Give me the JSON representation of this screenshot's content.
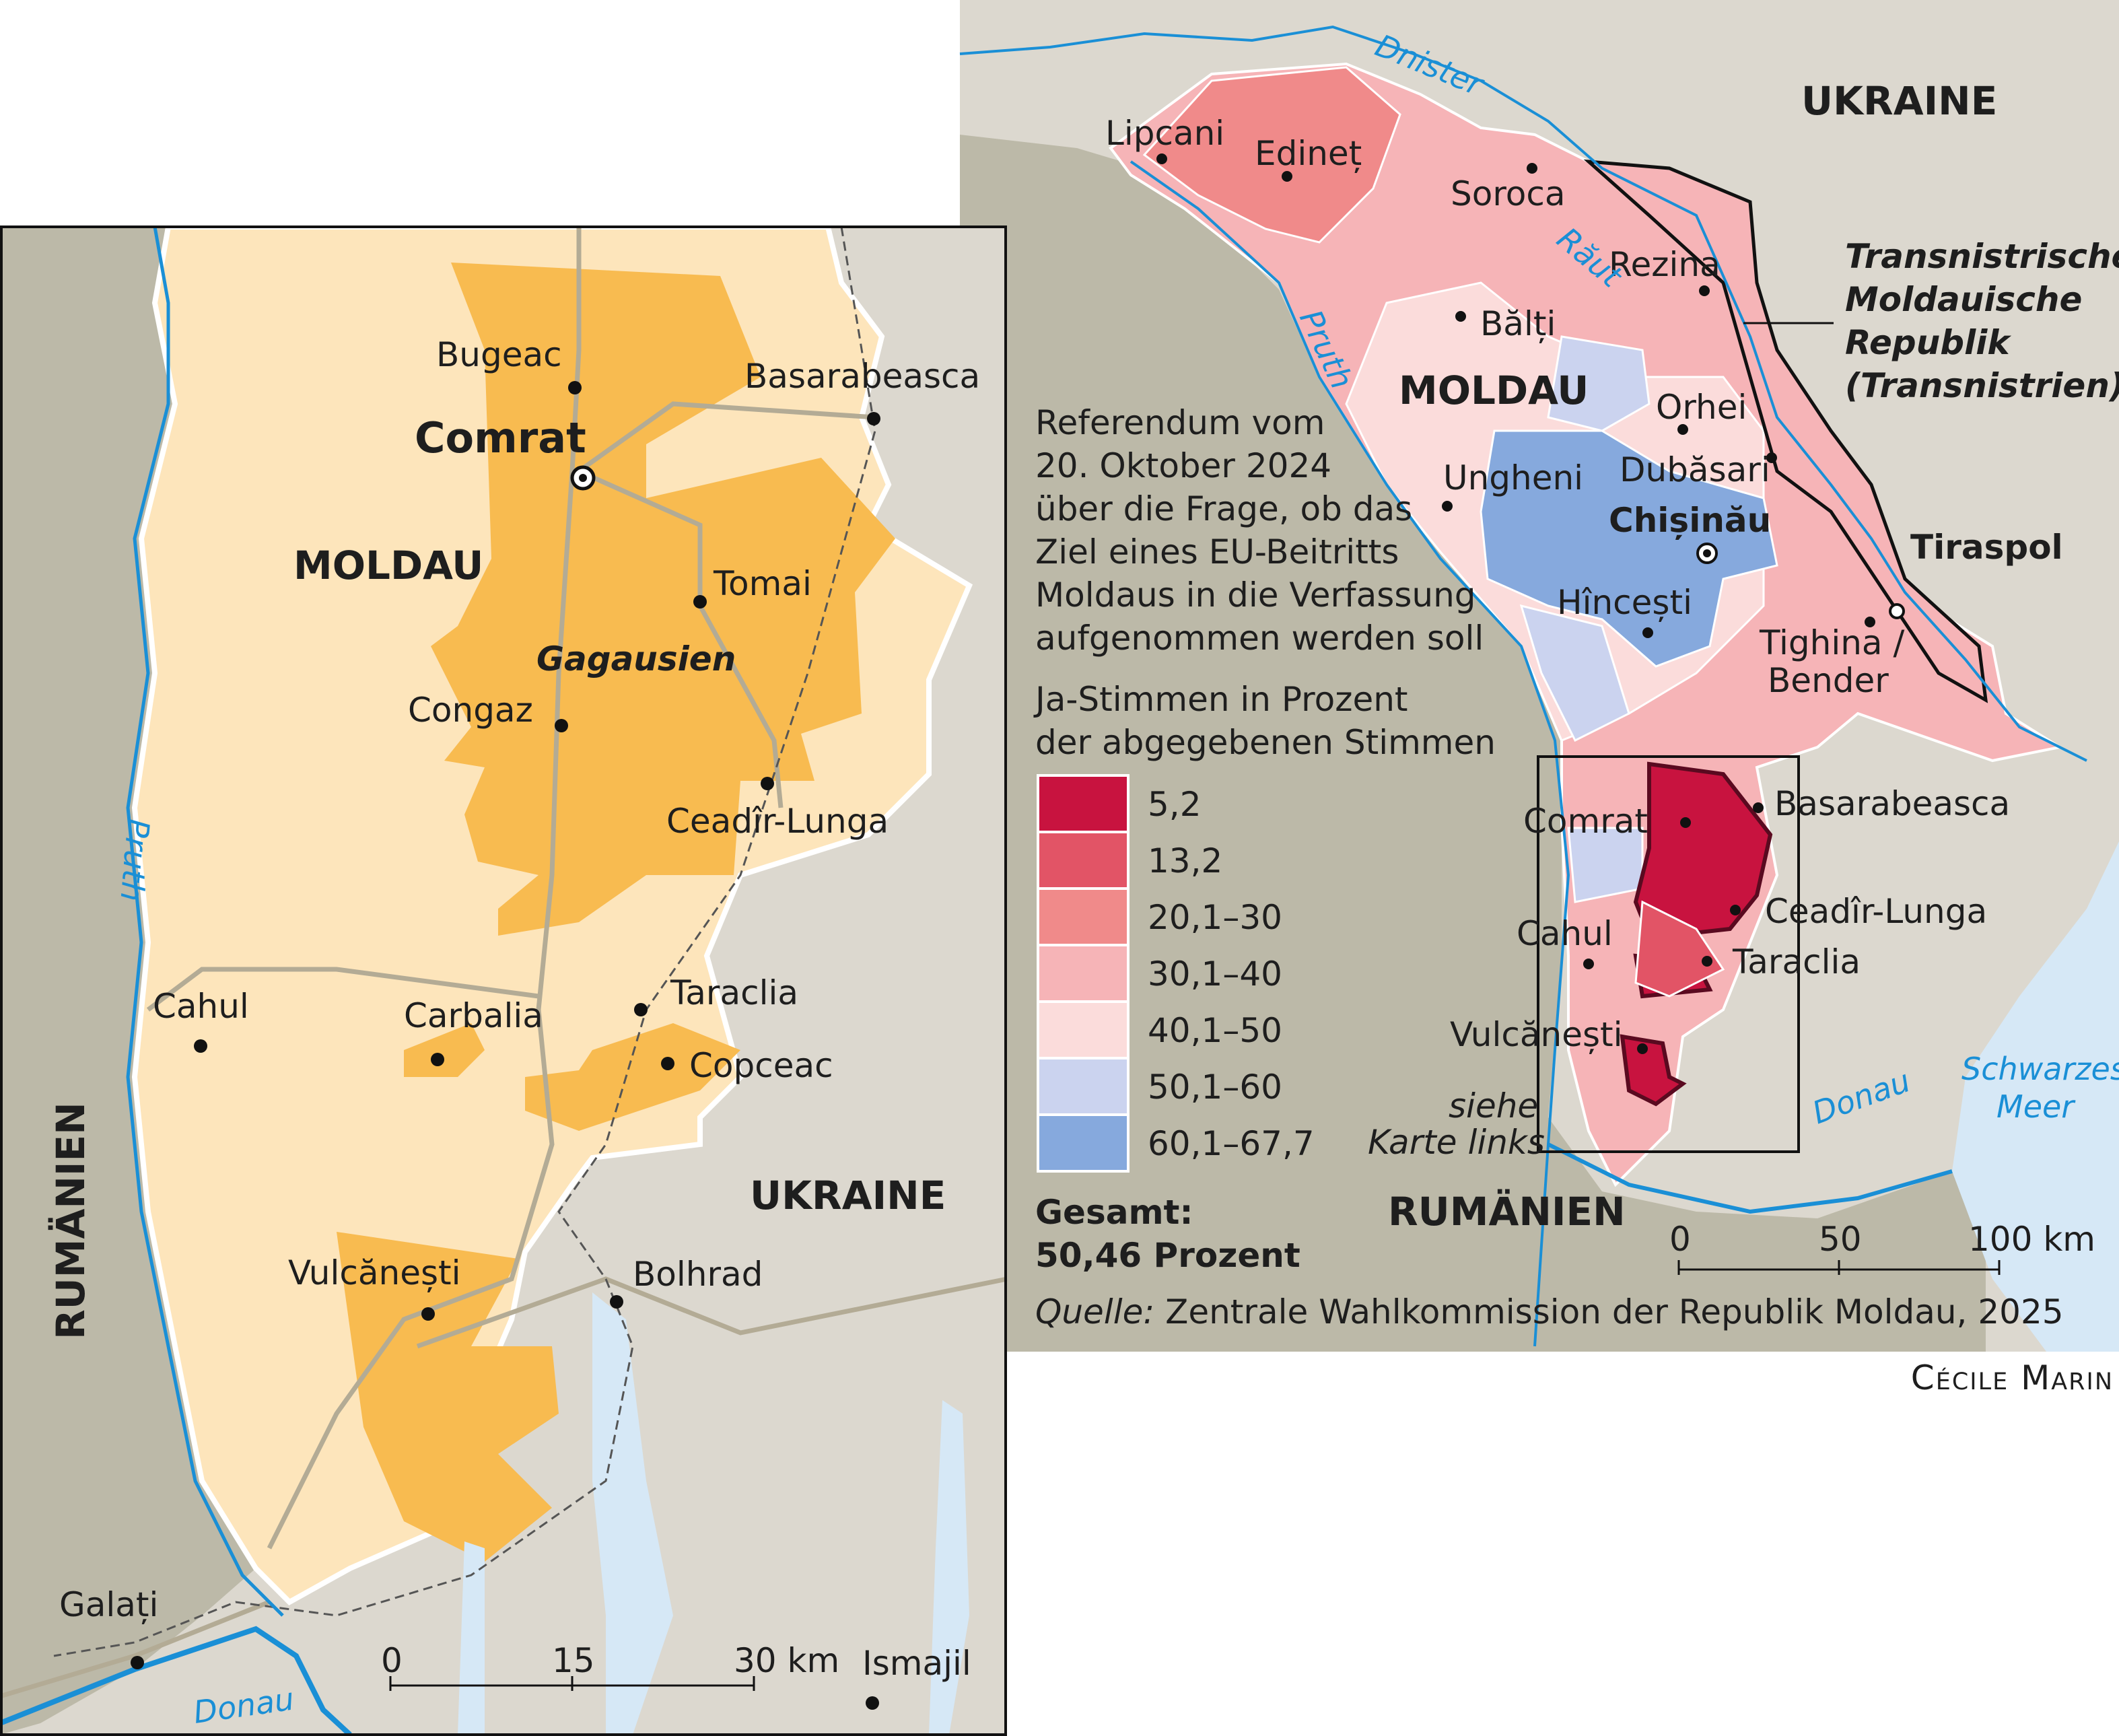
{
  "colors": {
    "romania": "#bcb9a8",
    "ukraine": "#dcd8cf",
    "moldova_left": "#fde5bb",
    "gagauzia": "#f8bb50",
    "water": "#d6e8f6",
    "river": "#1a8fd6"
  },
  "left_map": {
    "country_labels": {
      "moldau": "MOLDAU",
      "ukraine": "UKRAINE",
      "romania": "RUMÄNIEN"
    },
    "region_label": "Gagausien",
    "places": {
      "bugeac": "Bugeac",
      "comrat": "Comrat",
      "basarabeasca": "Basarabeasca",
      "tomai": "Tomai",
      "congaz": "Congaz",
      "ceadir_lunga": "Ceadîr-Lunga",
      "cahul": "Cahul",
      "carbalia": "Carbalia",
      "taraclia": "Taraclia",
      "copceac": "Copceac",
      "vulcanesti": "Vulcănești",
      "bolhrad": "Bolhrad",
      "galati": "Galați",
      "ismajil": "Ismajil"
    },
    "rivers": {
      "pruth": "Pruth",
      "donau": "Donau"
    },
    "scale": {
      "t0": "0",
      "t1": "15",
      "t2": "30 km"
    }
  },
  "right_map": {
    "country_labels": {
      "ukraine": "UKRAINE",
      "moldau": "MOLDAU",
      "romania": "RUMÄNIEN"
    },
    "transnistria": [
      "Transnistrische",
      "Moldauische",
      "Republik",
      "(Transnistrien)"
    ],
    "places": {
      "lipcani": "Lipcani",
      "edinet": "Edineț",
      "soroca": "Soroca",
      "rezina": "Rezina",
      "balti": "Bălți",
      "orhei": "Orhei",
      "ungheni": "Ungheni",
      "dubasari": "Dubăsari",
      "chisinau": "Chișinău",
      "tiraspol": "Tiraspol",
      "hincesti": "Hîncești",
      "tighina": "Tighina /",
      "bender": "Bender",
      "comrat": "Comrat",
      "basarabeasca": "Basarabeasca",
      "ceadir_lunga": "Ceadîr-Lunga",
      "cahul": "Cahul",
      "taraclia": "Taraclia",
      "vulcanesti": "Vulcănești"
    },
    "see_left": [
      "siehe",
      "Karte links"
    ],
    "rivers": {
      "dnister": "Dnister",
      "raut": "Răut",
      "pruth": "Pruth",
      "donau": "Donau",
      "sea1": "Schwarzes",
      "sea2": "Meer"
    },
    "scale": {
      "t0": "0",
      "t1": "50",
      "t2": "100 km"
    }
  },
  "legend": {
    "title_lines": [
      "Referendum vom",
      "20. Oktober 2024",
      "über die Frage, ob das",
      "Ziel eines EU-Beitritts",
      "Moldaus in die Verfassung",
      "aufgenommen werden soll"
    ],
    "subtitle_lines": [
      "Ja-Stimmen in Prozent",
      "der abgegebenen Stimmen"
    ],
    "classes": [
      {
        "label": "5,2",
        "color": "#c8133f"
      },
      {
        "label": "13,2",
        "color": "#e25466"
      },
      {
        "label": "20,1–30",
        "color": "#f08a8a"
      },
      {
        "label": "30,1–40",
        "color": "#f6b4b7"
      },
      {
        "label": "40,1–50",
        "color": "#fbdcdb"
      },
      {
        "label": "50,1–60",
        "color": "#cbd3ef"
      },
      {
        "label": "60,1–67,7",
        "color": "#86a9dd"
      }
    ],
    "total_label": "Gesamt:",
    "total_value": "50,46 Prozent"
  },
  "source_prefix": "Quelle:",
  "source_text": " Zentrale Wahlkommission der Republik Moldau, 2025",
  "credit": "Cécile Marin"
}
